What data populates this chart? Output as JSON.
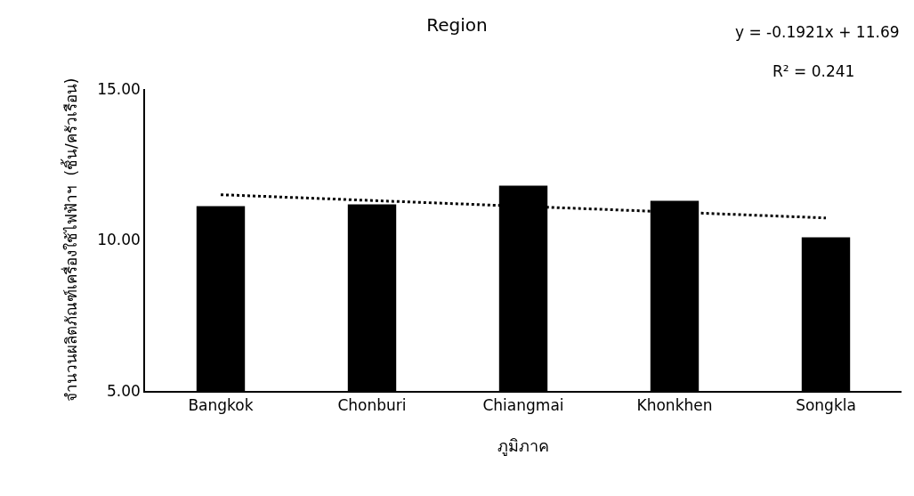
{
  "chart_data": {
    "type": "bar",
    "title": "Region",
    "xlabel": "ภูมิภาค",
    "ylabel": "จำนวนผลิตภัณฑ์เครื่องใช้ไฟฟ้าฯ  (ชิ้น/ครัวเรือน)",
    "categories": [
      "Bangkok",
      "Chonburi",
      "Chiangmai",
      "Khonkhen",
      "Songkla"
    ],
    "series": [
      {
        "color": "#000000",
        "values": [
          11.12,
          11.18,
          11.8,
          11.3,
          10.09
        ]
      },
      {
        "type": "line",
        "color": "#000000",
        "line_style": "dotted",
        "x": [
          "Bangkok",
          "Songkla"
        ],
        "values": [
          11.5,
          10.73
        ]
      }
    ],
    "ylim": [
      5,
      15
    ],
    "yticks": [
      {
        "value": 5,
        "label": "5.00"
      },
      {
        "value": 10,
        "label": "10.00"
      },
      {
        "value": 15,
        "label": "15.00"
      }
    ],
    "grid": false,
    "annotations": [
      "y = -0.1921x + 11.69",
      "R² = 0.241"
    ]
  }
}
